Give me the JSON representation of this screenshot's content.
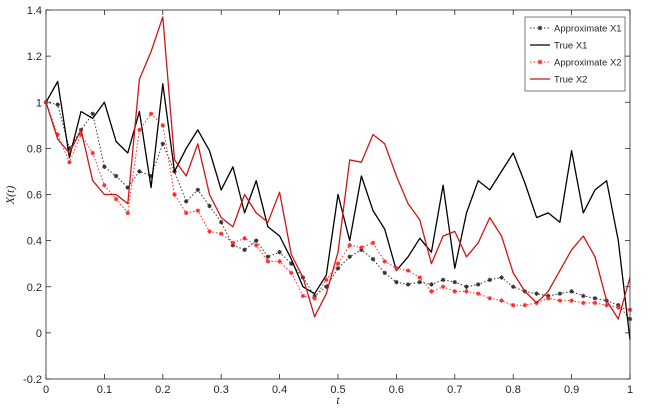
{
  "chart_data": {
    "type": "line",
    "title": "",
    "xlabel": "t",
    "ylabel": "X(t)",
    "xlim": [
      0,
      1
    ],
    "ylim": [
      -0.2,
      1.4
    ],
    "xticks": [
      0,
      0.1,
      0.2,
      0.3,
      0.4,
      0.5,
      0.6,
      0.7,
      0.8,
      0.9,
      1
    ],
    "xtick_labels": [
      "0",
      "0.1",
      "0.2",
      "0.3",
      "0.4",
      "0.5",
      "0.6",
      "0.7",
      "0.8",
      "0.9",
      "1"
    ],
    "yticks": [
      -0.2,
      0,
      0.2,
      0.4,
      0.6,
      0.8,
      1,
      1.2,
      1.4
    ],
    "ytick_labels": [
      "-0.2",
      "0",
      "0.2",
      "0.4",
      "0.6",
      "0.8",
      "1",
      "1.2",
      "1.4"
    ],
    "grid": false,
    "legend_position": "top-right",
    "x": [
      0,
      0.02,
      0.04,
      0.06,
      0.08,
      0.1,
      0.12,
      0.14,
      0.16,
      0.18,
      0.2,
      0.22,
      0.24,
      0.26,
      0.28,
      0.3,
      0.32,
      0.34,
      0.36,
      0.38,
      0.4,
      0.42,
      0.44,
      0.46,
      0.48,
      0.5,
      0.52,
      0.54,
      0.56,
      0.58,
      0.6,
      0.62,
      0.64,
      0.66,
      0.68,
      0.7,
      0.72,
      0.74,
      0.76,
      0.78,
      0.8,
      0.82,
      0.84,
      0.86,
      0.88,
      0.9,
      0.92,
      0.94,
      0.96,
      0.98,
      1
    ],
    "series": [
      {
        "name": "Approximate X1",
        "color": "#333333",
        "line_style": "dotted",
        "marker": "star",
        "values": [
          1.0,
          0.99,
          0.8,
          0.88,
          0.95,
          0.72,
          0.68,
          0.63,
          0.7,
          0.68,
          0.82,
          0.7,
          0.57,
          0.62,
          0.55,
          0.48,
          0.38,
          0.36,
          0.4,
          0.33,
          0.35,
          0.3,
          0.24,
          0.16,
          0.2,
          0.28,
          0.33,
          0.36,
          0.32,
          0.26,
          0.22,
          0.21,
          0.22,
          0.21,
          0.23,
          0.22,
          0.2,
          0.21,
          0.23,
          0.24,
          0.2,
          0.18,
          0.17,
          0.16,
          0.17,
          0.18,
          0.16,
          0.15,
          0.14,
          0.12,
          0.06
        ]
      },
      {
        "name": "True X1",
        "color": "#000000",
        "line_style": "solid",
        "marker": "none",
        "values": [
          1.0,
          1.09,
          0.76,
          0.96,
          0.93,
          1.0,
          0.83,
          0.78,
          0.96,
          0.63,
          1.08,
          0.7,
          0.8,
          0.88,
          0.79,
          0.62,
          0.72,
          0.52,
          0.66,
          0.46,
          0.42,
          0.32,
          0.2,
          0.17,
          0.25,
          0.6,
          0.4,
          0.68,
          0.53,
          0.45,
          0.27,
          0.33,
          0.41,
          0.35,
          0.64,
          0.28,
          0.52,
          0.66,
          0.62,
          0.7,
          0.78,
          0.65,
          0.5,
          0.52,
          0.48,
          0.79,
          0.52,
          0.62,
          0.66,
          0.4,
          -0.03
        ]
      },
      {
        "name": "Approximate X2",
        "color": "#ff2a2a",
        "line_style": "dotted",
        "marker": "star",
        "values": [
          1.0,
          0.86,
          0.74,
          0.86,
          0.78,
          0.64,
          0.58,
          0.52,
          0.88,
          0.95,
          0.9,
          0.6,
          0.52,
          0.53,
          0.44,
          0.43,
          0.39,
          0.41,
          0.38,
          0.31,
          0.31,
          0.26,
          0.16,
          0.15,
          0.23,
          0.3,
          0.38,
          0.37,
          0.39,
          0.31,
          0.28,
          0.27,
          0.24,
          0.18,
          0.2,
          0.18,
          0.18,
          0.17,
          0.15,
          0.14,
          0.12,
          0.12,
          0.13,
          0.15,
          0.14,
          0.14,
          0.13,
          0.13,
          0.12,
          0.11,
          0.1
        ]
      },
      {
        "name": "True X2",
        "color": "#d11515",
        "line_style": "solid",
        "marker": "none",
        "values": [
          1.0,
          0.84,
          0.78,
          0.88,
          0.66,
          0.6,
          0.6,
          0.56,
          1.1,
          1.22,
          1.37,
          0.75,
          0.68,
          0.82,
          0.6,
          0.5,
          0.46,
          0.6,
          0.52,
          0.48,
          0.61,
          0.34,
          0.24,
          0.07,
          0.17,
          0.35,
          0.75,
          0.74,
          0.86,
          0.82,
          0.68,
          0.56,
          0.49,
          0.3,
          0.42,
          0.44,
          0.33,
          0.39,
          0.5,
          0.42,
          0.26,
          0.18,
          0.13,
          0.18,
          0.27,
          0.36,
          0.42,
          0.33,
          0.14,
          0.06,
          0.24
        ]
      }
    ]
  }
}
